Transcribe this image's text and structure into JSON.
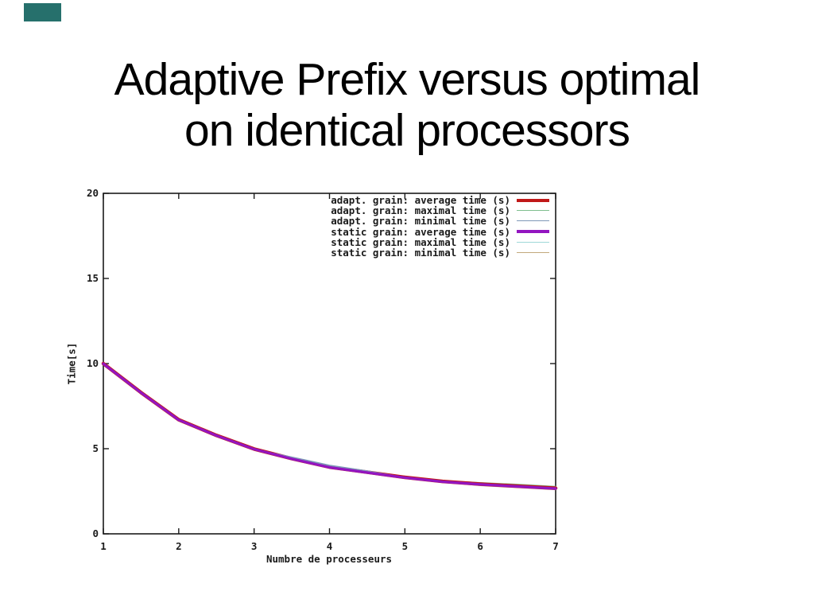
{
  "slide": {
    "title_line1": "Adaptive Prefix versus optimal",
    "title_line2": "on identical processors",
    "corner_mark_color": "#26706c",
    "background_color": "#ffffff"
  },
  "chart_data": {
    "type": "line",
    "title": "",
    "xlabel": "Numbre de processeurs",
    "ylabel": "Time[s]",
    "xlim": [
      1,
      7
    ],
    "ylim": [
      0,
      20
    ],
    "xticks": [
      1,
      2,
      3,
      4,
      5,
      6,
      7
    ],
    "yticks": [
      0,
      5,
      10,
      15,
      20
    ],
    "grid": false,
    "legend_position": "top-right-inside",
    "border_color": "#1a1a1a",
    "x": [
      1,
      1.5,
      2,
      2.5,
      3,
      3.5,
      4,
      4.5,
      5,
      5.5,
      6,
      6.5,
      7
    ],
    "series": [
      {
        "name": "adapt. grain: average time (s)",
        "color": "#c01818",
        "thick": true,
        "values": [
          10.0,
          8.3,
          6.7,
          5.78,
          4.98,
          4.42,
          3.92,
          3.62,
          3.32,
          3.08,
          2.92,
          2.8,
          2.68
        ]
      },
      {
        "name": "adapt. grain: maximal time (s)",
        "color": "#7fbf8f",
        "thick": false,
        "values": [
          10.02,
          8.32,
          6.72,
          5.8,
          5.0,
          4.44,
          3.94,
          3.64,
          3.34,
          3.12,
          3.0,
          2.9,
          2.78
        ]
      },
      {
        "name": "adapt. grain: minimal time (s)",
        "color": "#7e98b8",
        "thick": false,
        "values": [
          9.98,
          8.28,
          6.68,
          5.76,
          4.96,
          4.5,
          4.02,
          3.68,
          3.3,
          3.06,
          2.9,
          2.78,
          2.66
        ]
      },
      {
        "name": "static grain: average time (s)",
        "color": "#9315c0",
        "thick": true,
        "values": [
          9.99,
          8.29,
          6.69,
          5.77,
          4.97,
          4.4,
          3.9,
          3.6,
          3.3,
          3.06,
          2.9,
          2.78,
          2.66
        ]
      },
      {
        "name": "static grain: maximal time (s)",
        "color": "#9ed8d8",
        "thick": false,
        "values": [
          10.02,
          8.32,
          6.72,
          5.8,
          5.0,
          4.44,
          3.94,
          3.64,
          3.34,
          3.1,
          2.94,
          2.82,
          2.7
        ]
      },
      {
        "name": "static grain: minimal time (s)",
        "color": "#c2a87c",
        "thick": false,
        "values": [
          9.97,
          8.27,
          6.67,
          5.75,
          4.95,
          4.39,
          3.89,
          3.59,
          3.29,
          3.04,
          2.84,
          2.72,
          2.6
        ]
      }
    ]
  }
}
